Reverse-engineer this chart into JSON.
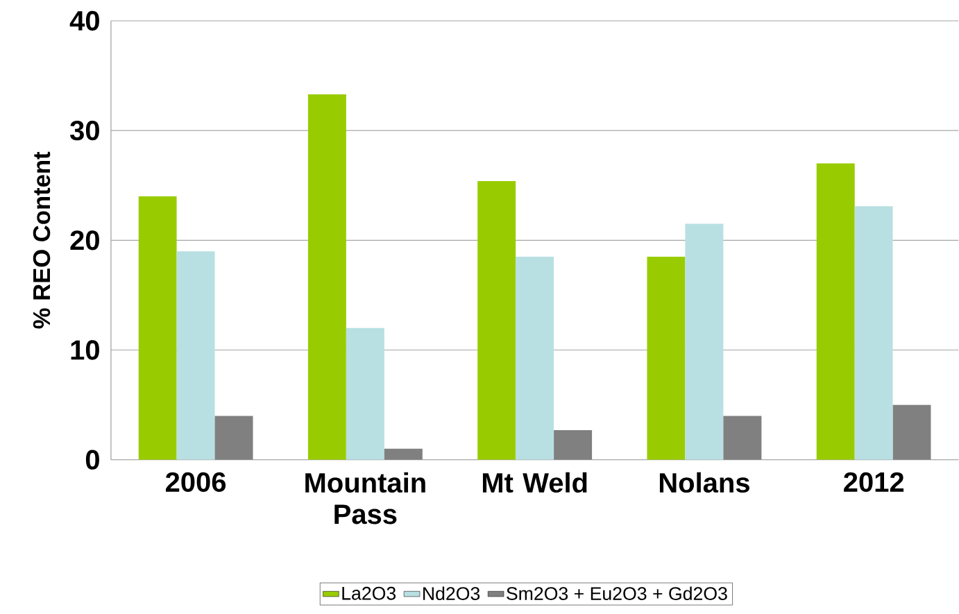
{
  "chart_data": {
    "type": "bar",
    "ylabel": "% REO Content",
    "categories": [
      "2006",
      "Mountain Pass",
      "Mt Weld",
      "Nolans",
      "2012"
    ],
    "series": [
      {
        "name": "La2O3",
        "color": "#99cc00",
        "values": [
          24,
          33.3,
          25.4,
          18.5,
          27
        ]
      },
      {
        "name": "Nd2O3",
        "color": "#b8e0e3",
        "values": [
          19,
          12,
          18.5,
          21.5,
          23.1
        ]
      },
      {
        "name": "Sm2O3 + Eu2O3 + Gd2O3",
        "color": "#808080",
        "values": [
          4,
          1,
          2.7,
          4,
          5
        ]
      }
    ],
    "ylim": [
      0,
      40
    ],
    "yticks": [
      0,
      10,
      20,
      30,
      40
    ],
    "grid": "y",
    "legend": "bottom"
  }
}
